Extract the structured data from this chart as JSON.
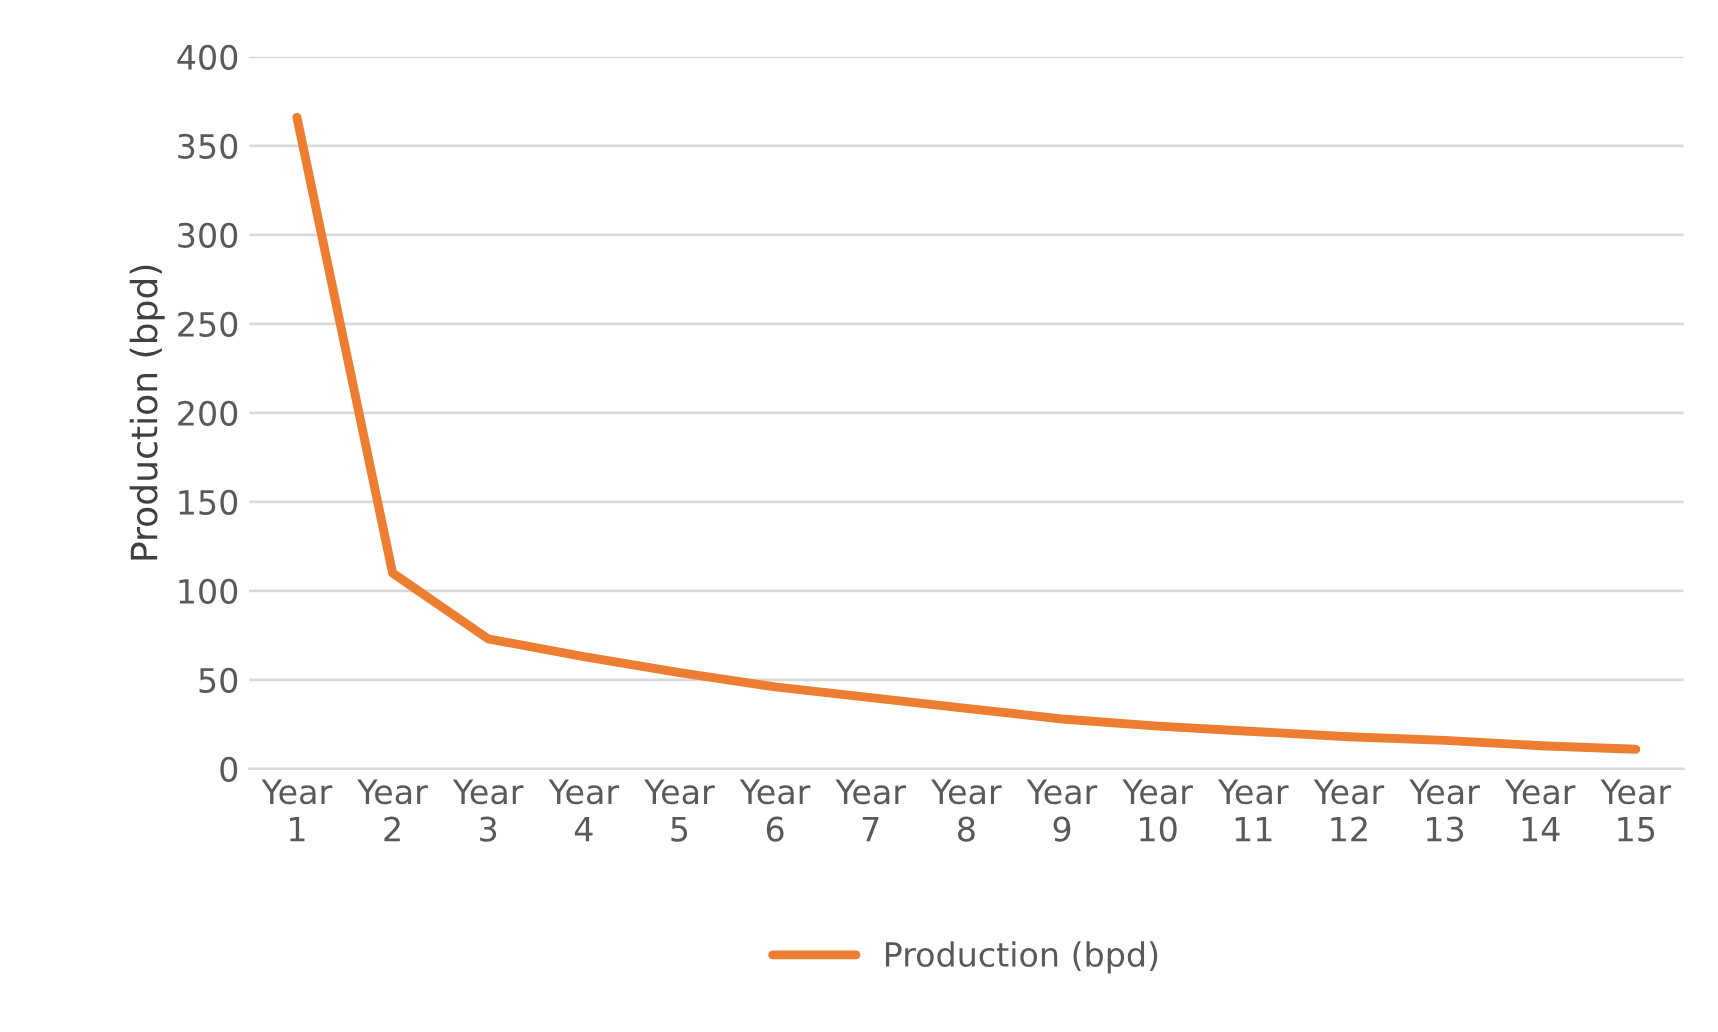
{
  "chart_data": {
    "type": "line",
    "ylabel": "Production (bpd)",
    "categories": [
      "Year\n1",
      "Year\n2",
      "Year\n3",
      "Year\n4",
      "Year\n5",
      "Year\n6",
      "Year\n7",
      "Year\n8",
      "Year\n9",
      "Year\n10",
      "Year\n11",
      "Year\n12",
      "Year\n13",
      "Year\n14",
      "Year\n15"
    ],
    "series": [
      {
        "name": "Production (bpd)",
        "color": "#ed7d31",
        "values": [
          366,
          110,
          73,
          63,
          54,
          46,
          40,
          34,
          28,
          24,
          21,
          18,
          16,
          13,
          11
        ]
      }
    ],
    "ylim": [
      0,
      400
    ],
    "yticks": [
      0,
      50,
      100,
      150,
      200,
      250,
      300,
      350,
      400
    ],
    "grid": "y",
    "legend": "bottom",
    "marker": "none",
    "line_style": "solid"
  }
}
